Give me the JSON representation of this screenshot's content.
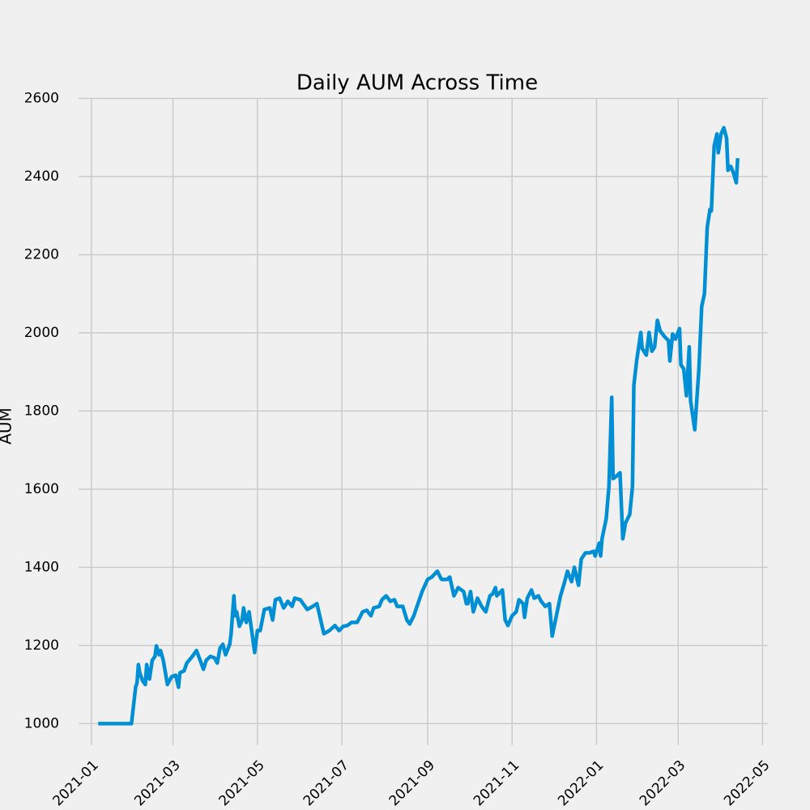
{
  "chart_data": {
    "type": "line",
    "title": "Daily AUM Across Time",
    "y_label": "AUM",
    "x": [
      "2021-01-06",
      "2021-01-30",
      "2021-02-02",
      "2021-02-03",
      "2021-02-04",
      "2021-02-05",
      "2021-02-07",
      "2021-02-09",
      "2021-02-10",
      "2021-02-12",
      "2021-02-14",
      "2021-02-16",
      "2021-02-17",
      "2021-02-19",
      "2021-02-20",
      "2021-02-22",
      "2021-02-25",
      "2021-02-28",
      "2021-03-03",
      "2021-03-05",
      "2021-03-06",
      "2021-03-09",
      "2021-03-11",
      "2021-03-15",
      "2021-03-18",
      "2021-03-20",
      "2021-03-23",
      "2021-03-25",
      "2021-03-28",
      "2021-03-31",
      "2021-04-02",
      "2021-04-04",
      "2021-04-06",
      "2021-04-08",
      "2021-04-11",
      "2021-04-12",
      "2021-04-14",
      "2021-04-15",
      "2021-04-16",
      "2021-04-18",
      "2021-04-20",
      "2021-04-21",
      "2021-04-23",
      "2021-04-25",
      "2021-04-27",
      "2021-04-29",
      "2021-05-01",
      "2021-05-03",
      "2021-05-06",
      "2021-05-10",
      "2021-05-12",
      "2021-05-14",
      "2021-05-17",
      "2021-05-20",
      "2021-05-23",
      "2021-05-26",
      "2021-05-28",
      "2021-06-01",
      "2021-06-03",
      "2021-06-06",
      "2021-06-10",
      "2021-06-13",
      "2021-06-18",
      "2021-06-22",
      "2021-06-26",
      "2021-06-29",
      "2021-07-02",
      "2021-07-05",
      "2021-07-08",
      "2021-07-12",
      "2021-07-14",
      "2021-07-16",
      "2021-07-19",
      "2021-07-22",
      "2021-07-24",
      "2021-07-28",
      "2021-07-30",
      "2021-08-02",
      "2021-08-05",
      "2021-08-08",
      "2021-08-10",
      "2021-08-14",
      "2021-08-17",
      "2021-08-19",
      "2021-08-22",
      "2021-08-25",
      "2021-08-28",
      "2021-09-01",
      "2021-09-04",
      "2021-09-08",
      "2021-09-11",
      "2021-09-15",
      "2021-09-17",
      "2021-09-20",
      "2021-09-23",
      "2021-09-27",
      "2021-09-29",
      "2021-09-30",
      "2021-10-02",
      "2021-10-04",
      "2021-10-07",
      "2021-10-10",
      "2021-10-13",
      "2021-10-16",
      "2021-10-18",
      "2021-10-20",
      "2021-10-21",
      "2021-10-25",
      "2021-10-27",
      "2021-10-29",
      "2021-11-01",
      "2021-11-04",
      "2021-11-06",
      "2021-11-09",
      "2021-11-10",
      "2021-11-12",
      "2021-11-15",
      "2021-11-17",
      "2021-11-20",
      "2021-11-22",
      "2021-11-25",
      "2021-11-28",
      "2021-11-30",
      "2021-12-03",
      "2021-12-06",
      "2021-12-09",
      "2021-12-11",
      "2021-12-14",
      "2021-12-16",
      "2021-12-19",
      "2021-12-21",
      "2021-12-24",
      "2021-12-27",
      "2021-12-30",
      "2021-12-31",
      "2022-01-03",
      "2022-01-04",
      "2022-01-05",
      "2022-01-08",
      "2022-01-10",
      "2022-01-12",
      "2022-01-13",
      "2022-01-15",
      "2022-01-18",
      "2022-01-20",
      "2022-01-22",
      "2022-01-25",
      "2022-01-27",
      "2022-01-28",
      "2022-01-30",
      "2022-02-02",
      "2022-02-03",
      "2022-02-06",
      "2022-02-08",
      "2022-02-10",
      "2022-02-12",
      "2022-02-14",
      "2022-02-16",
      "2022-02-19",
      "2022-02-22",
      "2022-02-23",
      "2022-02-25",
      "2022-02-27",
      "2022-03-02",
      "2022-03-03",
      "2022-03-05",
      "2022-03-07",
      "2022-03-09",
      "2022-03-10",
      "2022-03-13",
      "2022-03-16",
      "2022-03-18",
      "2022-03-20",
      "2022-03-22",
      "2022-03-24",
      "2022-03-25",
      "2022-03-27",
      "2022-03-29",
      "2022-03-30",
      "2022-04-01",
      "2022-04-03",
      "2022-04-05",
      "2022-04-06",
      "2022-04-08",
      "2022-04-10",
      "2022-04-12",
      "2022-04-13"
    ],
    "values": [
      1000,
      1000,
      1093,
      1104,
      1151,
      1130,
      1110,
      1100,
      1151,
      1114,
      1162,
      1172,
      1199,
      1176,
      1187,
      1162,
      1100,
      1120,
      1124,
      1093,
      1130,
      1135,
      1155,
      1172,
      1187,
      1168,
      1139,
      1162,
      1172,
      1168,
      1155,
      1193,
      1203,
      1176,
      1203,
      1230,
      1327,
      1276,
      1286,
      1249,
      1265,
      1296,
      1259,
      1286,
      1234,
      1182,
      1238,
      1238,
      1292,
      1296,
      1265,
      1317,
      1321,
      1296,
      1313,
      1300,
      1321,
      1317,
      1307,
      1292,
      1300,
      1307,
      1230,
      1238,
      1251,
      1238,
      1249,
      1251,
      1259,
      1259,
      1272,
      1286,
      1290,
      1276,
      1296,
      1300,
      1317,
      1327,
      1313,
      1317,
      1300,
      1300,
      1265,
      1255,
      1276,
      1307,
      1338,
      1369,
      1375,
      1390,
      1369,
      1369,
      1375,
      1327,
      1348,
      1338,
      1307,
      1307,
      1338,
      1286,
      1321,
      1300,
      1286,
      1327,
      1332,
      1348,
      1327,
      1342,
      1265,
      1251,
      1276,
      1286,
      1317,
      1307,
      1272,
      1321,
      1342,
      1321,
      1327,
      1313,
      1300,
      1307,
      1224,
      1276,
      1327,
      1363,
      1390,
      1363,
      1400,
      1354,
      1421,
      1437,
      1437,
      1441,
      1429,
      1462,
      1429,
      1473,
      1524,
      1607,
      1835,
      1627,
      1632,
      1642,
      1473,
      1514,
      1535,
      1607,
      1866,
      1928,
      2001,
      1960,
      1943,
      2001,
      1953,
      1964,
      2032,
      2005,
      1991,
      1980,
      1928,
      1997,
      1984,
      2011,
      1918,
      1908,
      1839,
      1964,
      1825,
      1752,
      1908,
      2067,
      2100,
      2270,
      2316,
      2312,
      2478,
      2509,
      2461,
      2509,
      2525,
      2498,
      2416,
      2426,
      2409,
      2384,
      2447
    ],
    "color": "#008fd5",
    "xlim": [
      "2020-12-14",
      "2022-05-06"
    ],
    "xticks": [
      {
        "value": "2021-01-01",
        "label": "2021-01"
      },
      {
        "value": "2021-03-01",
        "label": "2021-03"
      },
      {
        "value": "2021-05-01",
        "label": "2021-05"
      },
      {
        "value": "2021-07-01",
        "label": "2021-07"
      },
      {
        "value": "2021-09-01",
        "label": "2021-09"
      },
      {
        "value": "2021-11-01",
        "label": "2021-11"
      },
      {
        "value": "2022-01-01",
        "label": "2022-01"
      },
      {
        "value": "2022-03-01",
        "label": "2022-03"
      },
      {
        "value": "2022-05-01",
        "label": "2022-05"
      }
    ],
    "ylim": [
      924,
      2601
    ],
    "yticks": [
      1000,
      1200,
      1400,
      1600,
      1800,
      2000,
      2200,
      2400,
      2600
    ],
    "grid": true
  }
}
